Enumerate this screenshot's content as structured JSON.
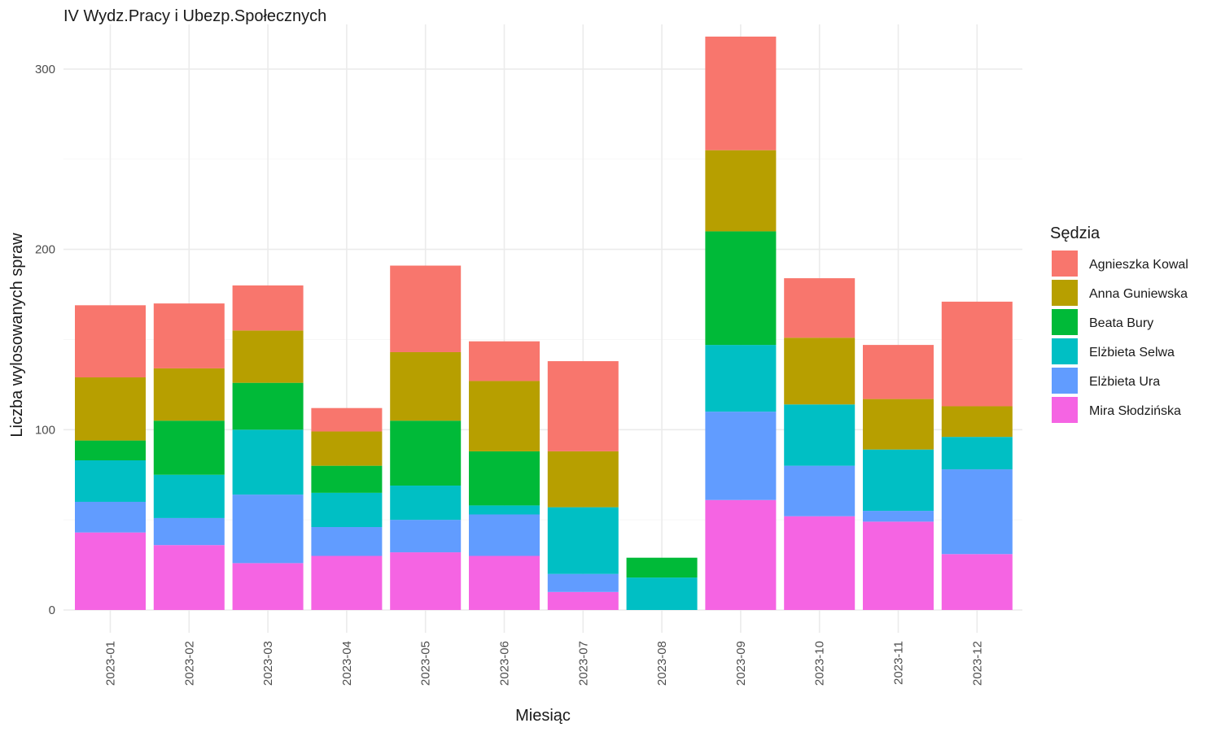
{
  "chart_data": {
    "type": "bar",
    "stacked": true,
    "title": "IV Wydz.Pracy i Ubezp.Społecznych",
    "xlabel": "Miesiąc",
    "ylabel": "Liczba wylosowanych spraw",
    "ylim": [
      0,
      320
    ],
    "yticks": [
      0,
      100,
      200,
      300
    ],
    "grid": true,
    "legend_title": "Sędzia",
    "legend_position": "right",
    "categories": [
      "2023-01",
      "2023-02",
      "2023-03",
      "2023-04",
      "2023-05",
      "2023-06",
      "2023-07",
      "2023-08",
      "2023-09",
      "2023-10",
      "2023-11",
      "2023-12"
    ],
    "series": [
      {
        "name": "Agnieszka Kowal",
        "color": "#F8766D",
        "values": [
          40,
          36,
          25,
          13,
          48,
          22,
          50,
          0,
          63,
          33,
          30,
          58
        ]
      },
      {
        "name": "Anna Guniewska",
        "color": "#B79F00",
        "values": [
          35,
          29,
          29,
          19,
          38,
          39,
          31,
          0,
          45,
          37,
          28,
          17
        ]
      },
      {
        "name": "Beata Bury",
        "color": "#00BA38",
        "values": [
          11,
          30,
          26,
          15,
          36,
          30,
          0,
          11,
          63,
          0,
          0,
          0
        ]
      },
      {
        "name": "Elżbieta Selwa",
        "color": "#00BFC4",
        "values": [
          23,
          24,
          36,
          19,
          19,
          5,
          37,
          18,
          37,
          34,
          34,
          18
        ]
      },
      {
        "name": "Elżbieta Ura",
        "color": "#619CFF",
        "values": [
          17,
          15,
          38,
          16,
          18,
          23,
          10,
          0,
          49,
          28,
          6,
          47
        ]
      },
      {
        "name": "Mira Słodzińska",
        "color": "#F564E3",
        "values": [
          43,
          36,
          26,
          30,
          32,
          30,
          10,
          0,
          61,
          52,
          49,
          31
        ]
      }
    ]
  }
}
